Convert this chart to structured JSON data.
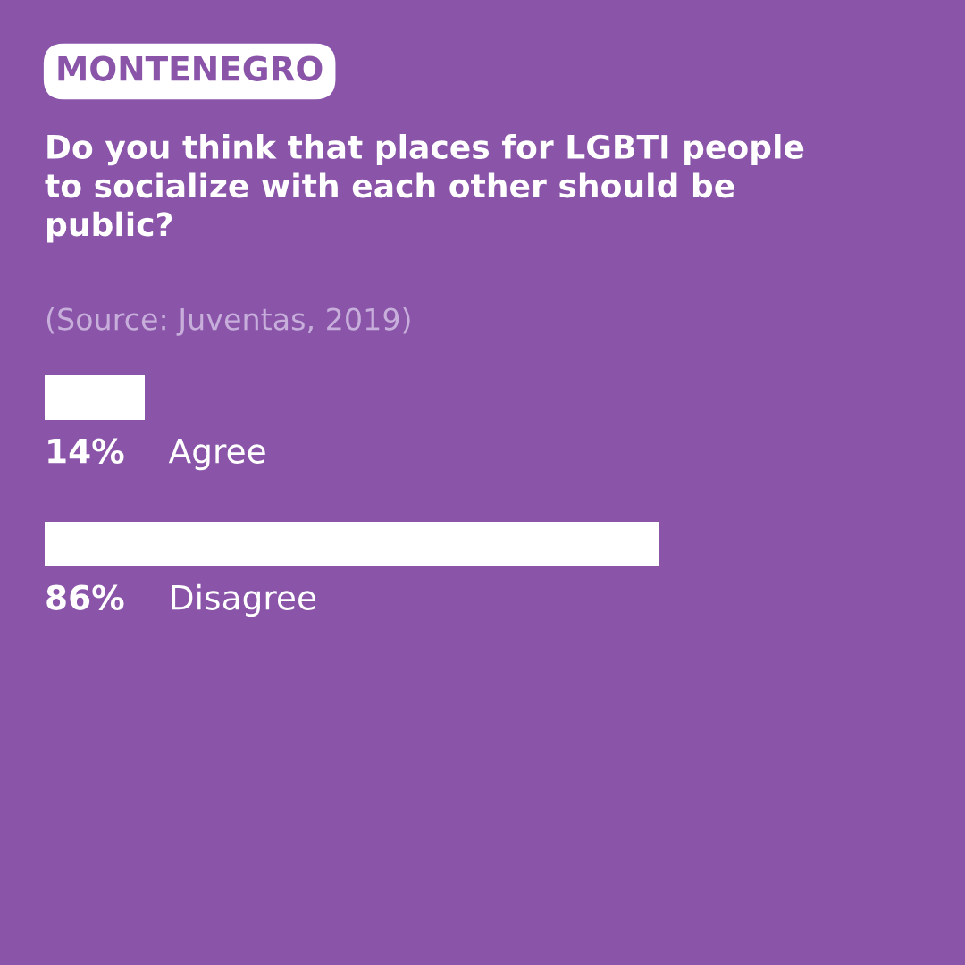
{
  "chart_data": {
    "type": "bar",
    "orientation": "horizontal",
    "title": "MONTENEGRO",
    "subtitle": "Do you think that places for LGBTI people to socialize with each other should be public?",
    "annotations": [
      "(Source: Juventas, 2019)"
    ],
    "categories": [
      "Agree",
      "Disagree"
    ],
    "values": [
      14,
      86
    ],
    "value_labels": [
      "14%",
      "86%"
    ],
    "color": "#ffffff",
    "legend": false
  }
}
